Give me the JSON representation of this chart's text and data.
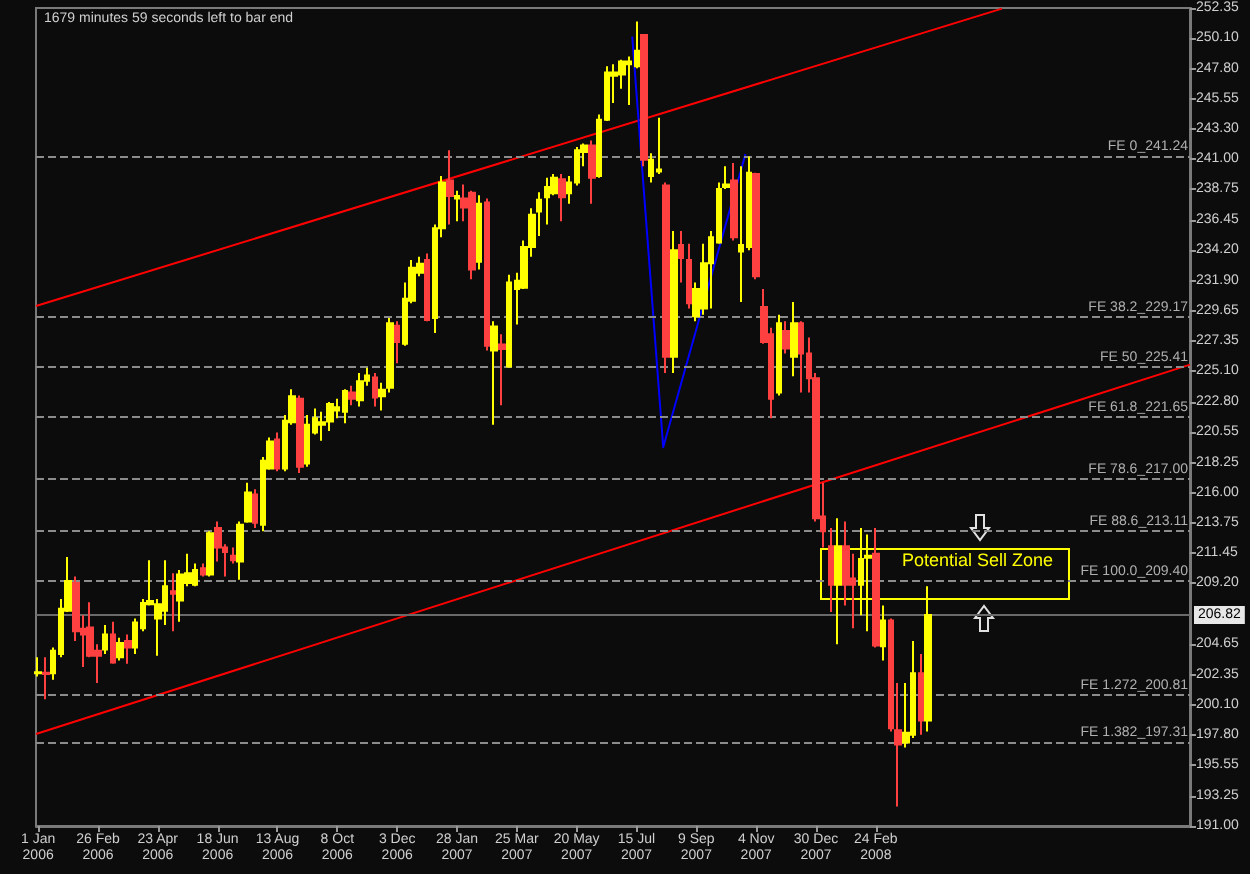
{
  "chart_data": {
    "type": "candlestick",
    "x": [
      "2006-01-01",
      "2006-01-08",
      "2006-01-15",
      "2006-01-22",
      "2006-01-29",
      "2006-02-05",
      "2006-02-12",
      "2006-02-19",
      "2006-02-26",
      "2006-03-05",
      "2006-03-12",
      "2006-03-19",
      "2006-03-26",
      "2006-04-02",
      "2006-04-09",
      "2006-04-16",
      "2006-04-23",
      "2006-04-30",
      "2006-05-07",
      "2006-05-14",
      "2006-05-21",
      "2006-05-28",
      "2006-06-04",
      "2006-06-11",
      "2006-06-18",
      "2006-06-25",
      "2006-07-02",
      "2006-07-09",
      "2006-07-16",
      "2006-07-23",
      "2006-07-30",
      "2006-08-06",
      "2006-08-13",
      "2006-08-20",
      "2006-08-27",
      "2006-09-03",
      "2006-09-10",
      "2006-09-17",
      "2006-09-24",
      "2006-10-01",
      "2006-10-08",
      "2006-10-15",
      "2006-10-22",
      "2006-10-29",
      "2006-11-05",
      "2006-11-12",
      "2006-11-19",
      "2006-11-26",
      "2006-12-03",
      "2006-12-10",
      "2006-12-17",
      "2006-12-24",
      "2006-12-31",
      "2007-01-07",
      "2007-01-14",
      "2007-01-21",
      "2007-01-28",
      "2007-02-04",
      "2007-02-11",
      "2007-02-18",
      "2007-02-25",
      "2007-03-04",
      "2007-03-11",
      "2007-03-18",
      "2007-03-25",
      "2007-04-01",
      "2007-04-08",
      "2007-04-15",
      "2007-04-22",
      "2007-04-29",
      "2007-05-06",
      "2007-05-13",
      "2007-05-20",
      "2007-05-27",
      "2007-06-03",
      "2007-06-10",
      "2007-06-17",
      "2007-06-24",
      "2007-07-01",
      "2007-07-08",
      "2007-07-15",
      "2007-07-22",
      "2007-07-29",
      "2007-08-05",
      "2007-08-12",
      "2007-08-19",
      "2007-08-26",
      "2007-09-02",
      "2007-09-09",
      "2007-09-16",
      "2007-09-23",
      "2007-09-30",
      "2007-10-07",
      "2007-10-14",
      "2007-10-21",
      "2007-10-28",
      "2007-11-04",
      "2007-11-11",
      "2007-11-18",
      "2007-11-25",
      "2007-12-02",
      "2007-12-09",
      "2007-12-16",
      "2007-12-23",
      "2007-12-30",
      "2008-01-06",
      "2008-01-13",
      "2008-01-20",
      "2008-01-27",
      "2008-02-03",
      "2008-02-10",
      "2008-02-17",
      "2008-02-24",
      "2008-03-02",
      "2008-03-09",
      "2008-03-16",
      "2008-03-23",
      "2008-03-30",
      "2008-04-06",
      "2008-04-13"
    ],
    "ohlc": [
      [
        202.45,
        203.66,
        202.21,
        202.54
      ],
      [
        202.49,
        203.66,
        200.51,
        202.4
      ],
      [
        202.45,
        204.38,
        201.96,
        204.14
      ],
      [
        203.9,
        208.02,
        203.66,
        207.29
      ],
      [
        207.15,
        211.17,
        207.05,
        209.38
      ],
      [
        209.23,
        209.72,
        204.87,
        205.6
      ],
      [
        205.79,
        206.81,
        202.93,
        205.36
      ],
      [
        205.89,
        207.78,
        203.66,
        203.76
      ],
      [
        204.14,
        204.63,
        201.72,
        203.76
      ],
      [
        204.24,
        206.08,
        203.9,
        205.36
      ],
      [
        205.36,
        206.32,
        203.17,
        203.27
      ],
      [
        203.66,
        205.11,
        203.42,
        204.73
      ],
      [
        204.87,
        205.36,
        203.17,
        204.39
      ],
      [
        204.39,
        206.56,
        203.9,
        206.27
      ],
      [
        205.84,
        208.02,
        205.6,
        207.73
      ],
      [
        207.63,
        210.93,
        207.53,
        207.87
      ],
      [
        206.56,
        208.02,
        203.76,
        207.63
      ],
      [
        207.15,
        210.93,
        206.08,
        208.99
      ],
      [
        208.6,
        209.96,
        205.6,
        208.41
      ],
      [
        207.92,
        210.2,
        206.32,
        209.86
      ],
      [
        209.23,
        211.41,
        208.99,
        209.96
      ],
      [
        209.09,
        210.68,
        208.99,
        210.2
      ],
      [
        210.34,
        210.68,
        209.72,
        209.86
      ],
      [
        209.86,
        213.11,
        209.72,
        212.96
      ],
      [
        213.35,
        213.83,
        210.83,
        211.89
      ],
      [
        211.89,
        212.14,
        209.72,
        211.55
      ],
      [
        211.26,
        211.89,
        210.68,
        210.93
      ],
      [
        210.83,
        213.83,
        209.47,
        213.59
      ],
      [
        213.83,
        216.74,
        213.74,
        216.01
      ],
      [
        215.87,
        216.26,
        213.35,
        213.74
      ],
      [
        213.59,
        218.68,
        213.11,
        218.39
      ],
      [
        217.81,
        220.13,
        217.71,
        219.84
      ],
      [
        219.99,
        220.52,
        217.61,
        217.81
      ],
      [
        217.81,
        221.83,
        217.61,
        221.39
      ],
      [
        221.29,
        223.76,
        221.1,
        223.23
      ],
      [
        223.04,
        223.28,
        217.47,
        217.95
      ],
      [
        218.19,
        221.83,
        217.95,
        221.1
      ],
      [
        220.52,
        222.31,
        220.37,
        221.58
      ],
      [
        221.1,
        222.07,
        219.89,
        221.29
      ],
      [
        221.34,
        222.8,
        220.62,
        222.65
      ],
      [
        222.17,
        223.04,
        221.58,
        222.41
      ],
      [
        222.07,
        223.76,
        221.2,
        223.62
      ],
      [
        223.52,
        224.01,
        222.55,
        223.04
      ],
      [
        222.94,
        224.98,
        222.46,
        224.35
      ],
      [
        224.39,
        225.36,
        224.01,
        224.78
      ],
      [
        224.64,
        224.98,
        222.46,
        223.14
      ],
      [
        223.23,
        224.25,
        222.17,
        223.72
      ],
      [
        223.86,
        229.1,
        223.52,
        228.71
      ],
      [
        228.51,
        228.85,
        225.7,
        227.3
      ],
      [
        227.16,
        231.76,
        227.01,
        230.55
      ],
      [
        230.4,
        233.45,
        230.21,
        232.87
      ],
      [
        232.49,
        233.7,
        232.24,
        233.16
      ],
      [
        233.45,
        233.94,
        228.85,
        228.95
      ],
      [
        229.1,
        236.12,
        227.98,
        235.83
      ],
      [
        235.83,
        239.75,
        235.15,
        239.27
      ],
      [
        239.41,
        241.69,
        236.12,
        238.25
      ],
      [
        238.06,
        238.64,
        236.36,
        238.25
      ],
      [
        238.06,
        239.12,
        236.36,
        237.38
      ],
      [
        238.49,
        238.64,
        232.0,
        232.73
      ],
      [
        233.31,
        238.3,
        232.73,
        237.67
      ],
      [
        237.77,
        238.06,
        226.67,
        227.01
      ],
      [
        226.67,
        228.85,
        221.1,
        228.46
      ],
      [
        227.11,
        227.88,
        222.55,
        226.77
      ],
      [
        225.46,
        232.34,
        225.36,
        231.76
      ],
      [
        231.27,
        232.49,
        228.61,
        231.9
      ],
      [
        231.37,
        234.91,
        231.27,
        234.42
      ],
      [
        234.42,
        237.33,
        233.7,
        236.85
      ],
      [
        237.09,
        238.54,
        235.25,
        237.96
      ],
      [
        238.15,
        239.61,
        236.12,
        238.93
      ],
      [
        238.45,
        239.9,
        238.3,
        239.61
      ],
      [
        239.51,
        239.9,
        236.36,
        238.15
      ],
      [
        238.45,
        239.75,
        237.67,
        239.27
      ],
      [
        239.27,
        241.93,
        239.03,
        241.69
      ],
      [
        241.55,
        242.18,
        240.48,
        242.03
      ],
      [
        242.03,
        242.42,
        237.67,
        239.61
      ],
      [
        239.75,
        244.36,
        239.61,
        243.97
      ],
      [
        243.97,
        247.99,
        243.87,
        247.51
      ],
      [
        247.26,
        248.14,
        245.23,
        247.51
      ],
      [
        247.36,
        248.47,
        246.29,
        248.33
      ],
      [
        248.13,
        248.72,
        245.08,
        248.33
      ],
      [
        247.99,
        251.33,
        247.84,
        249.15
      ],
      [
        250.32,
        250.32,
        240.48,
        240.96
      ],
      [
        239.75,
        241.45,
        239.27,
        240.96
      ],
      [
        240.09,
        244.11,
        239.9,
        240.24
      ],
      [
        239.03,
        239.27,
        224.98,
        226.19
      ],
      [
        226.19,
        235.63,
        224.98,
        234.18
      ],
      [
        234.57,
        235.63,
        231.76,
        233.6
      ],
      [
        233.45,
        234.67,
        229.82,
        230.21
      ],
      [
        229.24,
        231.76,
        228.85,
        231.27
      ],
      [
        229.82,
        234.67,
        229.34,
        233.21
      ],
      [
        233.21,
        235.63,
        229.82,
        235.15
      ],
      [
        234.76,
        239.27,
        234.67,
        238.78
      ],
      [
        238.93,
        240.48,
        238.78,
        239.12
      ],
      [
        239.41,
        240.72,
        234.91,
        235.15
      ],
      [
        234.09,
        240.48,
        230.3,
        234.57
      ],
      [
        234.42,
        241.21,
        234.18,
        239.99
      ],
      [
        239.9,
        239.99,
        232.0,
        232.24
      ],
      [
        229.92,
        231.27,
        227.16,
        227.3
      ],
      [
        227.88,
        228.37,
        221.58,
        223.04
      ],
      [
        223.52,
        229.34,
        223.28,
        228.71
      ],
      [
        228.13,
        228.85,
        226.43,
        226.82
      ],
      [
        226.19,
        230.3,
        224.74,
        228.71
      ],
      [
        228.71,
        228.85,
        223.52,
        226.43
      ],
      [
        226.43,
        227.64,
        223.52,
        224.59
      ],
      [
        224.59,
        224.98,
        213.83,
        214.08
      ],
      [
        214.22,
        216.74,
        211.89,
        213.11
      ],
      [
        211.99,
        213.35,
        207.05,
        209.09
      ],
      [
        209.09,
        214.08,
        204.63,
        211.99
      ],
      [
        211.99,
        213.83,
        207.53,
        209.09
      ],
      [
        209.57,
        211.41,
        205.84,
        209.09
      ],
      [
        209.09,
        213.35,
        206.81,
        211.02
      ],
      [
        211.12,
        212.86,
        205.6,
        211.26
      ],
      [
        211.41,
        213.35,
        204.39,
        204.53
      ],
      [
        204.48,
        207.53,
        203.42,
        206.42
      ],
      [
        206.42,
        206.56,
        198.09,
        198.33
      ],
      [
        198.18,
        201.72,
        192.47,
        197.12
      ],
      [
        197.26,
        201.72,
        196.88,
        197.99
      ],
      [
        197.84,
        204.87,
        197.6,
        202.45
      ],
      [
        202.45,
        203.9,
        197.84,
        198.91
      ],
      [
        198.91,
        208.99,
        198.09,
        206.82
      ]
    ],
    "colors": [
      "#ffff00",
      "#ff4040",
      "#ffff00",
      "#ffff00",
      "#ffff00",
      "#ff4040",
      "#ff4040",
      "#ff4040",
      "#ff4040",
      "#ffff00",
      "#ff4040",
      "#ffff00",
      "#ff4040",
      "#ffff00",
      "#ffff00",
      "#ffff00",
      "#ffff00",
      "#ffff00",
      "#ff4040",
      "#ffff00",
      "#ffff00",
      "#ffff00",
      "#ff4040",
      "#ffff00",
      "#ff4040",
      "#ff4040",
      "#ff4040",
      "#ffff00",
      "#ffff00",
      "#ff4040",
      "#ffff00",
      "#ffff00",
      "#ff4040",
      "#ffff00",
      "#ffff00",
      "#ff4040",
      "#ffff00",
      "#ffff00",
      "#ffff00",
      "#ffff00",
      "#ffff00",
      "#ffff00",
      "#ff4040",
      "#ffff00",
      "#ffff00",
      "#ff4040",
      "#ffff00",
      "#ffff00",
      "#ff4040",
      "#ffff00",
      "#ffff00",
      "#ffff00",
      "#ff4040",
      "#ffff00",
      "#ffff00",
      "#ff4040",
      "#ffff00",
      "#ff4040",
      "#ff4040",
      "#ffff00",
      "#ff4040",
      "#ffff00",
      "#ff4040",
      "#ffff00",
      "#ffff00",
      "#ffff00",
      "#ffff00",
      "#ffff00",
      "#ffff00",
      "#ffff00",
      "#ff4040",
      "#ffff00",
      "#ffff00",
      "#ffff00",
      "#ff4040",
      "#ffff00",
      "#ffff00",
      "#ffff00",
      "#ffff00",
      "#ffff00",
      "#ffff00",
      "#ff4040",
      "#ffff00",
      "#ffff00",
      "#ff4040",
      "#ffff00",
      "#ff4040",
      "#ff4040",
      "#ffff00",
      "#ffff00",
      "#ffff00",
      "#ffff00",
      "#ffff00",
      "#ff4040",
      "#ffff00",
      "#ffff00",
      "#ff4040",
      "#ff4040",
      "#ff4040",
      "#ffff00",
      "#ff4040",
      "#ffff00",
      "#ff4040",
      "#ff4040",
      "#ff4040",
      "#ff4040",
      "#ff4040",
      "#ffff00",
      "#ff4040",
      "#ff4040",
      "#ffff00",
      "#ffff00",
      "#ff4040",
      "#ffff00",
      "#ff4040",
      "#ff4040",
      "#ffff00",
      "#ffff00",
      "#ff4040",
      "#ffff00"
    ],
    "series": [
      {
        "type": "line",
        "color": "#ff0000",
        "x": [
          "2005-12-30",
          "2008-06-21"
        ],
        "values": [
          230.0,
          252.3
        ]
      },
      {
        "type": "line",
        "color": "#ff0000",
        "x": [
          "2005-12-30",
          "2008-12-14"
        ],
        "values": [
          197.9,
          225.6
        ]
      },
      {
        "type": "line",
        "color": "#0000ff",
        "x": [
          "2007-07-11",
          "2007-08-09",
          "2007-10-25"
        ],
        "values": [
          250.2,
          219.4,
          241.4
        ]
      }
    ],
    "marker": "none",
    "line_style": "solid",
    "xlim": [
      "2005-12-30",
      "2008-12-14"
    ],
    "xticks": [
      {
        "value": "2006-01-01",
        "label": "1 Jan 2006"
      },
      {
        "value": "2006-02-26",
        "label": "26 Feb 2006"
      },
      {
        "value": "2006-04-23",
        "label": "23 Apr 2006"
      },
      {
        "value": "2006-06-18",
        "label": "18 Jun 2006"
      },
      {
        "value": "2006-08-13",
        "label": "13 Aug 2006"
      },
      {
        "value": "2006-10-08",
        "label": "8 Oct 2006"
      },
      {
        "value": "2006-12-03",
        "label": "3 Dec 2006"
      },
      {
        "value": "2007-01-28",
        "label": "28 Jan 2007"
      },
      {
        "value": "2007-03-25",
        "label": "25 Mar 2007"
      },
      {
        "value": "2007-05-20",
        "label": "20 May 2007"
      },
      {
        "value": "2007-07-15",
        "label": "15 Jul 2007"
      },
      {
        "value": "2007-09-09",
        "label": "9 Sep 2007"
      },
      {
        "value": "2007-11-04",
        "label": "4 Nov 2007"
      },
      {
        "value": "2007-12-30",
        "label": "30 Dec 2007"
      },
      {
        "value": "2008-02-24",
        "label": "24 Feb 2008"
      }
    ],
    "ylim": [
      191.0,
      252.35
    ],
    "yticks": [
      {
        "value": 252.35,
        "label": "252.35"
      },
      {
        "value": 250.1,
        "label": "250.10"
      },
      {
        "value": 247.8,
        "label": "247.80"
      },
      {
        "value": 245.55,
        "label": "245.55"
      },
      {
        "value": 243.3,
        "label": "243.30"
      },
      {
        "value": 241.0,
        "label": "241.00"
      },
      {
        "value": 238.75,
        "label": "238.75"
      },
      {
        "value": 236.45,
        "label": "236.45"
      },
      {
        "value": 234.2,
        "label": "234.20"
      },
      {
        "value": 231.9,
        "label": "231.90"
      },
      {
        "value": 229.65,
        "label": "229.65"
      },
      {
        "value": 227.35,
        "label": "227.35"
      },
      {
        "value": 225.1,
        "label": "225.10"
      },
      {
        "value": 222.8,
        "label": "222.80"
      },
      {
        "value": 220.55,
        "label": "220.55"
      },
      {
        "value": 218.25,
        "label": "218.25"
      },
      {
        "value": 216.0,
        "label": "216.00"
      },
      {
        "value": 213.75,
        "label": "213.75"
      },
      {
        "value": 211.45,
        "label": "211.45"
      },
      {
        "value": 209.2,
        "label": "209.20"
      },
      {
        "value": 204.65,
        "label": "204.65"
      },
      {
        "value": 202.35,
        "label": "202.35"
      },
      {
        "value": 200.1,
        "label": "200.10"
      },
      {
        "value": 197.8,
        "label": "197.80"
      },
      {
        "value": 195.55,
        "label": "195.55"
      },
      {
        "value": 193.25,
        "label": "193.25"
      },
      {
        "value": 191.0,
        "label": "191.00"
      }
    ],
    "ref_lines": [
      {
        "axis": "y",
        "value": 241.24,
        "label": "FE 0_241.24",
        "color": "#8c8c8c",
        "line_style": "dashed"
      },
      {
        "axis": "y",
        "value": 229.17,
        "label": "FE 38.2_229.17",
        "color": "#8c8c8c",
        "line_style": "dashed"
      },
      {
        "axis": "y",
        "value": 225.41,
        "label": "FE 50_225.41",
        "color": "#8c8c8c",
        "line_style": "dashed"
      },
      {
        "axis": "y",
        "value": 221.65,
        "label": "FE 61.8_221.65",
        "color": "#8c8c8c",
        "line_style": "dashed"
      },
      {
        "axis": "y",
        "value": 217.0,
        "label": "FE 78.6_217.00",
        "color": "#8c8c8c",
        "line_style": "dashed"
      },
      {
        "axis": "y",
        "value": 213.11,
        "label": "FE 88.6_213.11",
        "color": "#8c8c8c",
        "line_style": "dashed"
      },
      {
        "axis": "y",
        "value": 209.4,
        "label": "FE 100.0_209.40",
        "color": "#8c8c8c",
        "line_style": "dashed"
      },
      {
        "axis": "y",
        "value": 200.81,
        "label": "FE 1.272_200.81",
        "color": "#8c8c8c",
        "line_style": "dashed"
      },
      {
        "axis": "y",
        "value": 197.31,
        "label": "FE 1.382_197.31",
        "color": "#8c8c8c",
        "line_style": "dashed"
      },
      {
        "axis": "y",
        "value": 206.82,
        "label": "206.82",
        "color": "#6a6a6a",
        "line_style": "solid"
      }
    ],
    "annotations": [
      "1679 minutes 59 seconds left to bar end",
      "Potential Sell Zone"
    ]
  }
}
